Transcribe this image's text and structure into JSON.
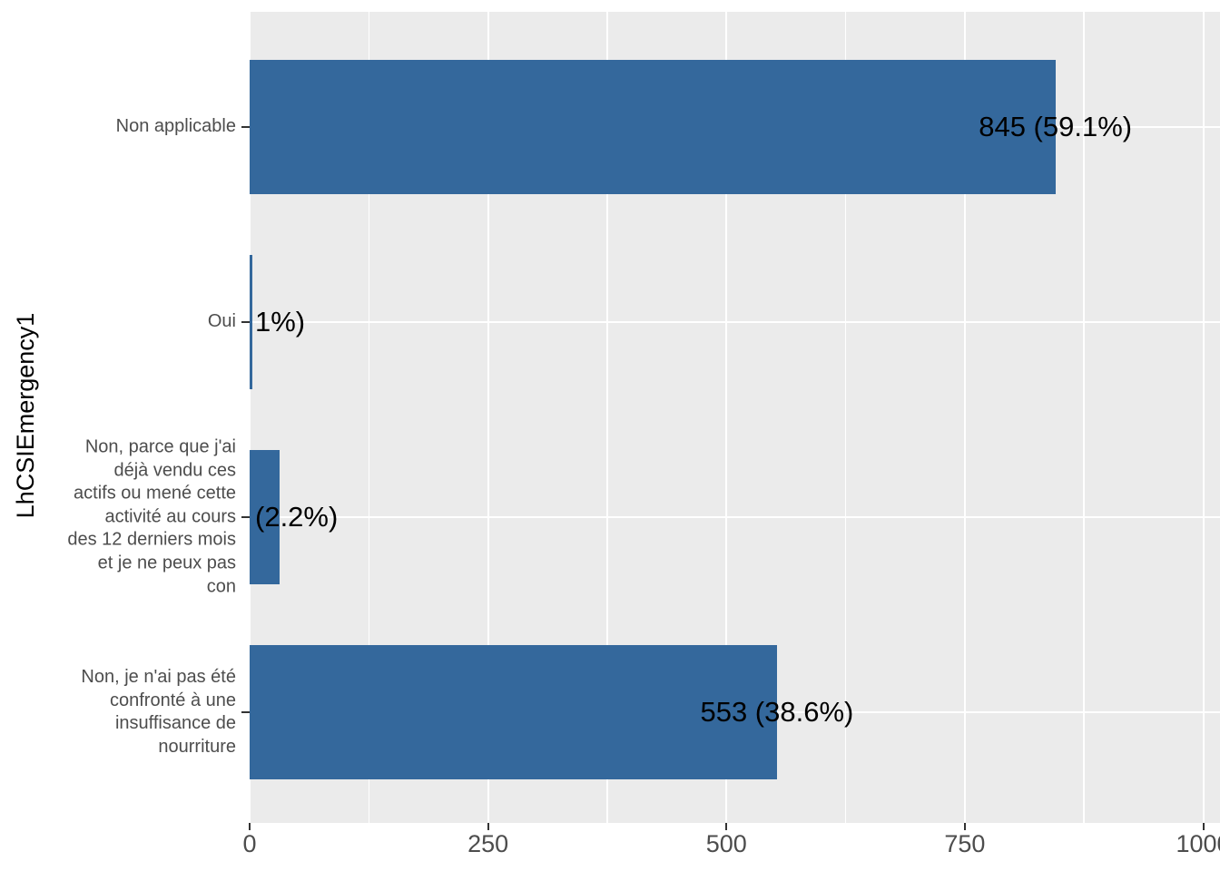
{
  "chart_data": {
    "type": "bar",
    "orientation": "horizontal",
    "title": "",
    "xlabel": "",
    "ylabel": "LhCSIEmergency1",
    "x_ticks": [
      0,
      250,
      500,
      750,
      1000
    ],
    "xlim": [
      0,
      1017
    ],
    "grid": "major-vertical, minor-vertical, major-horizontal-per-category",
    "legend": "none",
    "panel_background": "#EBEBEB",
    "gridline_color": "#FFFFFF",
    "bar_color": "#34689C",
    "axis_text_color": "#4D4D4D",
    "tick_mark_color": "#333333",
    "label_text_color": "#000000",
    "categories": [
      "Non applicable",
      "Oui",
      "Non, parce que j'ai déjà vendu ces actifs ou mené cette activité au cours des 12 derniers mois et je ne peux pas con",
      "Non, je n'ai pas été confronté à une insuffisance de nourriture"
    ],
    "values": [
      845,
      2,
      31,
      553
    ],
    "bars": [
      {
        "category_lines": [
          "Non applicable"
        ],
        "value": 845,
        "label": "845 (59.1%)",
        "label_align": "center"
      },
      {
        "category_lines": [
          "Oui"
        ],
        "value": 2,
        "label": "1%)",
        "label_align": "left"
      },
      {
        "category_lines": [
          "Non, parce que j'ai",
          "déjà vendu ces",
          "actifs ou mené cette",
          "activité au cours",
          "des 12 derniers mois",
          "et je ne peux pas",
          "con"
        ],
        "value": 31,
        "label": "(2.2%)",
        "label_align": "left"
      },
      {
        "category_lines": [
          "Non, je n'ai pas été",
          "confronté à une",
          "insuffisance de",
          "nourriture"
        ],
        "value": 553,
        "label": "553 (38.6%)",
        "label_align": "center"
      }
    ]
  }
}
